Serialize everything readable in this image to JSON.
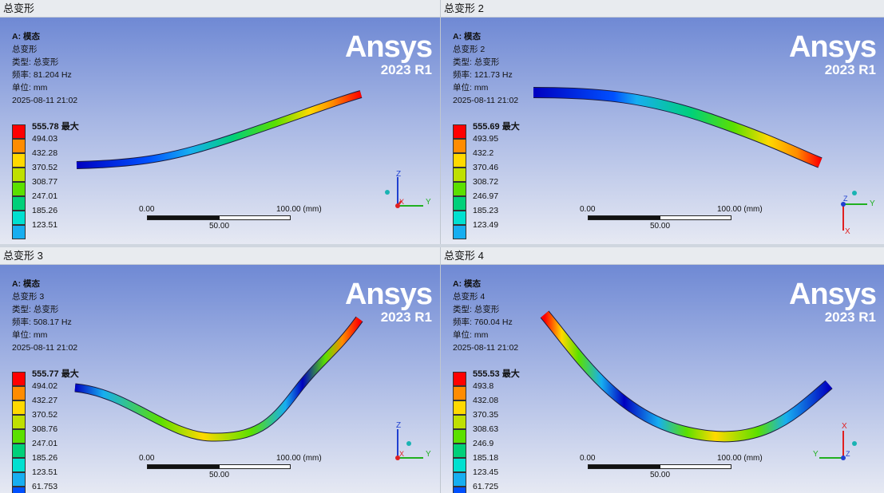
{
  "legend_colors": [
    "#ff0000",
    "#ff8c00",
    "#ffd900",
    "#bfe000",
    "#5be000",
    "#00d07a",
    "#00e0d0",
    "#17aef0",
    "#0050ff",
    "#0000c0"
  ],
  "brand": {
    "name": "Ansys",
    "version": "2023 R1"
  },
  "scale": {
    "zero": "0.00",
    "full": "100.00 (mm)",
    "mid": "50.00"
  },
  "common": {
    "analysis": "A: 模态",
    "type": "类型: 总变形",
    "unit": "单位: mm",
    "date": "2025-08-11 21:02"
  },
  "panes": [
    {
      "title": "总变形",
      "name": "总变形",
      "freq": "频率: 81.204   Hz",
      "max": "555.78 最大",
      "levels": [
        "494.03",
        "432.28",
        "370.52",
        "308.77",
        "247.01",
        "185.26",
        "123.51"
      ]
    },
    {
      "title": "总变形 2",
      "name": "总变形 2",
      "freq": "频率: 121.73   Hz",
      "max": "555.69 最大",
      "levels": [
        "493.95",
        "432.2",
        "370.46",
        "308.72",
        "246.97",
        "185.23",
        "123.49"
      ]
    },
    {
      "title": "总变形 3",
      "name": "总变形 3",
      "freq": "频率: 508.17   Hz",
      "max": "555.77 最大",
      "levels": [
        "494.02",
        "432.27",
        "370.52",
        "308.76",
        "247.01",
        "185.26",
        "123.51",
        "61.753"
      ]
    },
    {
      "title": "总变形 4",
      "name": "总变形 4",
      "freq": "频率: 760.04   Hz",
      "max": "555.53 最大",
      "levels": [
        "493.8",
        "432.08",
        "370.35",
        "308.63",
        "246.9",
        "185.18",
        "123.45",
        "61.725"
      ]
    }
  ],
  "triad_labels": {
    "x": "X",
    "y": "Y",
    "z": "Z"
  }
}
